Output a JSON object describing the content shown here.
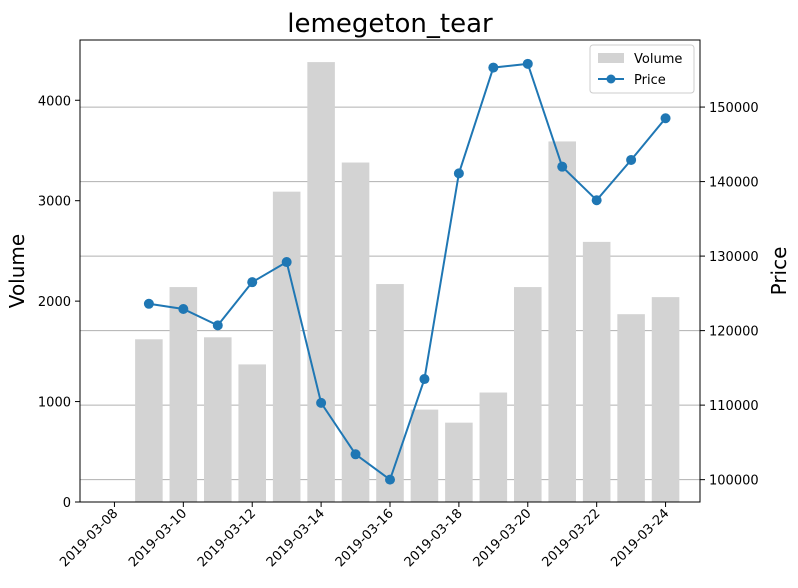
{
  "chart_data": {
    "type": "bar",
    "title": "lemegeton_tear",
    "xlabel": "",
    "ylabel": "Volume",
    "y2label": "Price",
    "x_ticks": [
      "2019-03-08",
      "2019-03-10",
      "2019-03-12",
      "2019-03-14",
      "2019-03-16",
      "2019-03-18",
      "2019-03-20",
      "2019-03-22",
      "2019-03-24"
    ],
    "y_ticks": [
      0,
      1000,
      2000,
      3000,
      4000
    ],
    "y2_ticks": [
      100000,
      110000,
      120000,
      130000,
      140000,
      150000
    ],
    "ylim": [
      0,
      4600
    ],
    "y2lim": [
      97000,
      159000
    ],
    "xlim": [
      "2019-03-07",
      "2019-03-25"
    ],
    "grid": "horizontal (secondary axis)",
    "legend_position": "top-right",
    "colors": {
      "volume": "#d3d3d3",
      "price": "#1f77b4",
      "grid": "#b0b0b0"
    },
    "series": [
      {
        "name": "Volume",
        "kind": "bar",
        "axis": "left",
        "x": [
          "2019-03-09",
          "2019-03-10",
          "2019-03-11",
          "2019-03-12",
          "2019-03-13",
          "2019-03-14",
          "2019-03-15",
          "2019-03-16",
          "2019-03-17",
          "2019-03-18",
          "2019-03-19",
          "2019-03-20",
          "2019-03-21",
          "2019-03-22",
          "2019-03-23",
          "2019-03-24"
        ],
        "values": [
          1620,
          2140,
          1640,
          1370,
          3090,
          4380,
          3380,
          2170,
          920,
          790,
          1090,
          2140,
          3590,
          2590,
          1870,
          2040
        ]
      },
      {
        "name": "Price",
        "kind": "line",
        "axis": "right",
        "x": [
          "2019-03-09",
          "2019-03-10",
          "2019-03-11",
          "2019-03-12",
          "2019-03-13",
          "2019-03-14",
          "2019-03-15",
          "2019-03-16",
          "2019-03-17",
          "2019-03-18",
          "2019-03-19",
          "2019-03-20",
          "2019-03-21",
          "2019-03-22",
          "2019-03-23",
          "2019-03-24"
        ],
        "values": [
          123600,
          122900,
          120700,
          126500,
          129200,
          110300,
          103400,
          100000,
          113500,
          141100,
          155300,
          155800,
          142000,
          137500,
          142900,
          148500
        ]
      }
    ]
  }
}
